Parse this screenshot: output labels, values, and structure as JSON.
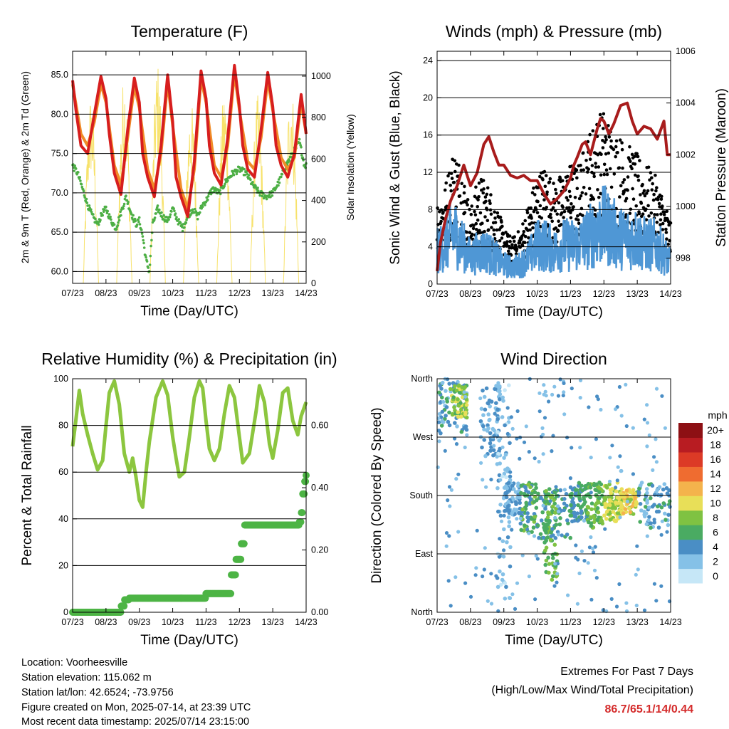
{
  "chart_data": [
    {
      "type": "line",
      "title": "Temperature (F)",
      "xlabel": "Time (Day/UTC)",
      "ylabel": "2m & 9m T (Red, Orange) & 2m Td (Green)",
      "y2label": "Solar Insolation (Yellow)",
      "xticks": [
        "07/23",
        "08/23",
        "09/23",
        "10/23",
        "11/23",
        "12/23",
        "13/23",
        "14/23"
      ],
      "ylim": [
        58.5,
        88
      ],
      "yticks": [
        "60.0",
        "65.0",
        "70.0",
        "75.0",
        "80.0",
        "85.0"
      ],
      "y2lim": [
        0,
        1120
      ],
      "y2ticks": [
        "0",
        "200",
        "400",
        "600",
        "800",
        "1000"
      ],
      "grid": true,
      "series": [
        {
          "name": "2m T",
          "color": "#d71e1e",
          "x": [
            0,
            0.1,
            0.25,
            0.45,
            0.65,
            0.85,
            1.0,
            1.1,
            1.25,
            1.45,
            1.65,
            1.85,
            2.0,
            2.1,
            2.25,
            2.45,
            2.65,
            2.85,
            3.0,
            3.1,
            3.25,
            3.45,
            3.65,
            3.85,
            4.0,
            4.1,
            4.25,
            4.45,
            4.65,
            4.85,
            5.0,
            5.1,
            5.25,
            5.45,
            5.65,
            5.85,
            6.0,
            6.1,
            6.25,
            6.45,
            6.65,
            6.85,
            7.0
          ],
          "values": [
            84.3,
            80.5,
            76.0,
            75.0,
            80.0,
            84.8,
            82.0,
            77.5,
            72.5,
            69.8,
            78.0,
            84.6,
            81.5,
            75.0,
            72.0,
            69.5,
            76.0,
            85.0,
            79.0,
            72.0,
            69.5,
            67.0,
            74.0,
            85.5,
            82.0,
            76.0,
            72.5,
            71.0,
            77.0,
            86.2,
            81.0,
            76.0,
            73.0,
            72.0,
            78.0,
            85.3,
            81.0,
            76.0,
            73.5,
            72.0,
            75.0,
            82.5,
            77.5
          ]
        },
        {
          "name": "9m T",
          "color": "#f08c28",
          "x": [
            0,
            0.25,
            0.45,
            0.65,
            0.85,
            1.0,
            1.25,
            1.45,
            1.65,
            1.85,
            2.0,
            2.25,
            2.45,
            2.65,
            2.85,
            3.0,
            3.25,
            3.45,
            3.65,
            3.85,
            4.0,
            4.25,
            4.45,
            4.65,
            4.85,
            5.0,
            5.25,
            5.45,
            5.65,
            5.85,
            6.0,
            6.25,
            6.45,
            6.65,
            6.85,
            7.0
          ],
          "values": [
            83.8,
            77.5,
            76.0,
            79.0,
            83.8,
            81.5,
            73.5,
            71.0,
            77.0,
            83.5,
            80.8,
            73.0,
            70.5,
            75.0,
            84.0,
            78.5,
            70.5,
            68.0,
            73.0,
            84.5,
            81.5,
            73.5,
            72.0,
            76.0,
            85.2,
            80.5,
            74.0,
            73.0,
            77.0,
            84.3,
            80.5,
            74.5,
            73.0,
            74.5,
            81.5,
            77.5
          ]
        },
        {
          "name": "2m Td",
          "color": "#4daf45",
          "x": [
            0,
            0.15,
            0.3,
            0.45,
            0.6,
            0.75,
            0.9,
            1.0,
            1.15,
            1.3,
            1.45,
            1.6,
            1.75,
            1.9,
            2.0,
            2.1,
            2.2,
            2.3,
            2.4,
            2.55,
            2.7,
            2.85,
            3.0,
            3.15,
            3.3,
            3.45,
            3.6,
            3.75,
            3.9,
            4.0,
            4.2,
            4.4,
            4.6,
            4.8,
            5.0,
            5.2,
            5.4,
            5.6,
            5.8,
            6.0,
            6.2,
            6.4,
            6.6,
            6.8,
            6.95,
            7.0
          ],
          "values": [
            73.5,
            72.5,
            70.5,
            68.5,
            67.0,
            66.0,
            67.5,
            68.0,
            66.5,
            65.5,
            67.5,
            69.5,
            67.5,
            66.0,
            66.5,
            64.5,
            61.5,
            60.0,
            66.0,
            68.0,
            67.0,
            66.5,
            68.0,
            66.5,
            65.5,
            67.0,
            68.0,
            67.0,
            68.5,
            69.0,
            70.5,
            70.0,
            71.5,
            72.5,
            73.0,
            72.5,
            71.0,
            70.0,
            69.5,
            70.0,
            71.5,
            73.5,
            75.0,
            76.5,
            73.5,
            73.5
          ]
        },
        {
          "name": "Solar Insolation",
          "color": "#f7e26b",
          "axis": "y2",
          "days": [
            0,
            1,
            2,
            3,
            4,
            5,
            6
          ],
          "peaks": [
            920,
            1020,
            1070,
            880,
            940,
            910,
            980
          ]
        }
      ]
    },
    {
      "type": "scatter",
      "title": "Winds (mph) & Pressure (mb)",
      "xlabel": "Time (Day/UTC)",
      "ylabel": "Sonic Wind & Gust (Blue, Black)",
      "y2label": "Station Pressure (Maroon)",
      "xticks": [
        "07/23",
        "08/23",
        "09/23",
        "10/23",
        "11/23",
        "12/23",
        "13/23",
        "14/23"
      ],
      "ylim": [
        0,
        25
      ],
      "yticks": [
        "0",
        "4",
        "8",
        "12",
        "16",
        "20",
        "24"
      ],
      "y2lim": [
        997.0,
        1006.0
      ],
      "y2ticks": [
        "998",
        "1000",
        "1002",
        "1004",
        "1006"
      ],
      "grid": true,
      "series": [
        {
          "name": "Gust",
          "color": "#000000",
          "envelope_x": [
            0,
            0.25,
            0.5,
            0.75,
            1.0,
            1.25,
            1.5,
            1.75,
            2.0,
            2.25,
            2.5,
            2.75,
            3.0,
            3.25,
            3.5,
            3.75,
            4.0,
            4.25,
            4.5,
            4.75,
            5.0,
            5.25,
            5.5,
            5.75,
            6.0,
            6.25,
            6.5,
            6.75,
            7.0
          ],
          "envelope_values": [
            9,
            11,
            15,
            13,
            8,
            12,
            11,
            9,
            6,
            5,
            6,
            9,
            12,
            13,
            11,
            12,
            13,
            13,
            16,
            18,
            19,
            17,
            16,
            15,
            14,
            13,
            12,
            10,
            7
          ]
        },
        {
          "name": "Wind",
          "color": "#4f97d5",
          "envelope_x": [
            0,
            0.25,
            0.5,
            0.75,
            1.0,
            1.25,
            1.5,
            1.75,
            2.0,
            2.25,
            2.5,
            2.75,
            3.0,
            3.25,
            3.5,
            3.75,
            4.0,
            4.25,
            4.5,
            4.75,
            5.0,
            5.25,
            5.5,
            5.75,
            6.0,
            6.25,
            6.5,
            6.75,
            7.0
          ],
          "envelope_values": [
            5,
            6,
            8,
            6,
            4,
            5,
            5,
            4,
            3,
            2.5,
            3,
            4,
            6,
            6,
            5,
            6,
            6,
            6,
            7,
            8,
            9,
            8,
            7,
            7,
            7,
            6,
            6,
            5,
            3
          ]
        },
        {
          "name": "Pressure",
          "color": "#a81c1c",
          "axis": "y2",
          "x": [
            0,
            0.1,
            0.25,
            0.4,
            0.6,
            0.8,
            1.0,
            1.2,
            1.4,
            1.55,
            1.7,
            1.85,
            2.0,
            2.2,
            2.4,
            2.6,
            2.8,
            3.0,
            3.2,
            3.4,
            3.6,
            3.8,
            4.0,
            4.1,
            4.2,
            4.35,
            4.45,
            4.6,
            4.8,
            4.9,
            5.0,
            5.15,
            5.3,
            5.5,
            5.7,
            5.85,
            6.0,
            6.2,
            6.4,
            6.6,
            6.8,
            6.9,
            7.0
          ],
          "values": [
            997.5,
            998.6,
            999.5,
            1000.2,
            1000.8,
            1001.6,
            1000.8,
            1001.3,
            1002.4,
            1002.7,
            1002.1,
            1001.6,
            1001.6,
            1001.2,
            1001.1,
            1001.2,
            1001.0,
            1001.0,
            1000.5,
            1000.1,
            1000.3,
            1000.6,
            1001.1,
            1001.6,
            1001.9,
            1002.4,
            1002.5,
            1002.0,
            1003.0,
            1003.4,
            1003.3,
            1002.8,
            1003.2,
            1003.9,
            1004.0,
            1003.3,
            1002.8,
            1003.1,
            1003.0,
            1002.6,
            1003.3,
            1002.0,
            1002.0
          ]
        }
      ]
    },
    {
      "type": "line",
      "title": "Relative Humidity (%) & Precipitation (in)",
      "xlabel": "Time (Day/UTC)",
      "ylabel": "Percent & Total Rainfall",
      "xticks": [
        "07/23",
        "08/23",
        "09/23",
        "10/23",
        "11/23",
        "12/23",
        "13/23",
        "14/23"
      ],
      "ylim": [
        0,
        100
      ],
      "yticks": [
        "0",
        "20",
        "40",
        "60",
        "80",
        "100"
      ],
      "y2lim": [
        0,
        0.75
      ],
      "y2ticks": [
        "0.00",
        "0.20",
        "0.40",
        "0.60"
      ],
      "grid": true,
      "series": [
        {
          "name": "RH",
          "color": "#8cc63f",
          "x": [
            0,
            0.08,
            0.2,
            0.3,
            0.45,
            0.6,
            0.75,
            0.9,
            1.0,
            1.1,
            1.25,
            1.4,
            1.55,
            1.7,
            1.8,
            1.9,
            2.0,
            2.1,
            2.2,
            2.3,
            2.5,
            2.7,
            2.85,
            3.0,
            3.1,
            3.2,
            3.35,
            3.5,
            3.65,
            3.8,
            3.9,
            4.0,
            4.1,
            4.25,
            4.4,
            4.55,
            4.7,
            4.85,
            5.0,
            5.1,
            5.3,
            5.5,
            5.6,
            5.75,
            5.9,
            6.0,
            6.15,
            6.3,
            6.45,
            6.6,
            6.75,
            6.85,
            7.0
          ],
          "values": [
            71,
            80,
            95,
            85,
            76,
            68,
            61,
            65,
            80,
            94,
            99,
            89,
            68,
            60,
            66,
            58,
            48,
            45,
            60,
            73,
            92,
            99,
            93,
            75,
            66,
            58,
            60,
            75,
            92,
            99,
            96,
            82,
            70,
            65,
            70,
            85,
            97,
            92,
            75,
            64,
            68,
            86,
            97,
            90,
            72,
            66,
            78,
            94,
            96,
            82,
            76,
            84,
            90
          ]
        },
        {
          "name": "Precipitation",
          "color": "#4db445",
          "axis": "y2",
          "x": [
            0,
            1.4,
            1.45,
            1.55,
            1.7,
            2.0,
            3.0,
            3.7,
            4.0,
            4.7,
            4.75,
            4.9,
            5.0,
            5.05,
            5.15,
            5.3,
            6.0,
            6.8,
            6.85,
            6.9,
            6.95,
            7.0
          ],
          "values": [
            0.0,
            0.0,
            0.02,
            0.04,
            0.045,
            0.045,
            0.045,
            0.045,
            0.06,
            0.06,
            0.12,
            0.17,
            0.17,
            0.22,
            0.28,
            0.28,
            0.28,
            0.29,
            0.32,
            0.38,
            0.42,
            0.44
          ]
        }
      ]
    },
    {
      "type": "scatter",
      "title": "Wind Direction",
      "xlabel": "Time (Day/UTC)",
      "ylabel": "Direction (Colored By Speed)",
      "xticks": [
        "07/23",
        "08/23",
        "09/23",
        "10/23",
        "11/23",
        "12/23",
        "13/23",
        "14/23"
      ],
      "yticks": [
        "North",
        "East",
        "South",
        "West",
        "North"
      ],
      "ylim": [
        0,
        360
      ],
      "grid": true,
      "colorbar": {
        "title": "mph",
        "labels": [
          "0",
          "2",
          "4",
          "6",
          "8",
          "10",
          "12",
          "14",
          "16",
          "18",
          "20+"
        ],
        "colors": [
          "#c6e7f7",
          "#85c1e7",
          "#4a8ec5",
          "#4aab62",
          "#7fc242",
          "#e8df58",
          "#f4b34c",
          "#ef6c30",
          "#dc3a26",
          "#b81c22",
          "#8d1014"
        ]
      },
      "clusters": [
        {
          "x": [
            0.05,
            0.9
          ],
          "dir": [
            275,
            355
          ],
          "speed": 4
        },
        {
          "x": [
            0.4,
            0.9
          ],
          "dir": [
            300,
            350
          ],
          "speed": 8
        },
        {
          "x": [
            1.3,
            1.9
          ],
          "dir": [
            240,
            350
          ],
          "speed": 3
        },
        {
          "x": [
            1.8,
            2.2
          ],
          "dir": [
            20,
            350
          ],
          "speed": 2
        },
        {
          "x": [
            2.0,
            2.5
          ],
          "dir": [
            150,
            200
          ],
          "speed": 3
        },
        {
          "x": [
            2.5,
            3.0
          ],
          "dir": [
            120,
            200
          ],
          "speed": 6
        },
        {
          "x": [
            3.0,
            4.0
          ],
          "dir": [
            110,
            190
          ],
          "speed": 5
        },
        {
          "x": [
            3.2,
            3.6
          ],
          "dir": [
            50,
            190
          ],
          "speed": 7
        },
        {
          "x": [
            4.0,
            4.5
          ],
          "dir": [
            140,
            200
          ],
          "speed": 5
        },
        {
          "x": [
            4.5,
            5.0
          ],
          "dir": [
            130,
            200
          ],
          "speed": 7
        },
        {
          "x": [
            5.0,
            5.5
          ],
          "dir": [
            140,
            200
          ],
          "speed": 9
        },
        {
          "x": [
            5.5,
            6.0
          ],
          "dir": [
            150,
            190
          ],
          "speed": 10
        },
        {
          "x": [
            6.0,
            7.0
          ],
          "dir": [
            130,
            200
          ],
          "speed": 4
        }
      ]
    }
  ],
  "footer": {
    "location": "Location: Voorheesville",
    "elevation": "Station elevation: 115.062 m",
    "latlon": "Station lat/lon: 42.6524; -73.9756",
    "created": "Figure created on Mon, 2025-07-14, at 23:39 UTC",
    "recent": "Most recent data timestamp: 2025/07/14 23:15:00"
  },
  "extremes": {
    "title": "Extremes For Past 7 Days",
    "subtitle": "(High/Low/Max Wind/Total Precipitation)",
    "values": "86.7/65.1/14/0.44",
    "color": "#d42a2a"
  }
}
